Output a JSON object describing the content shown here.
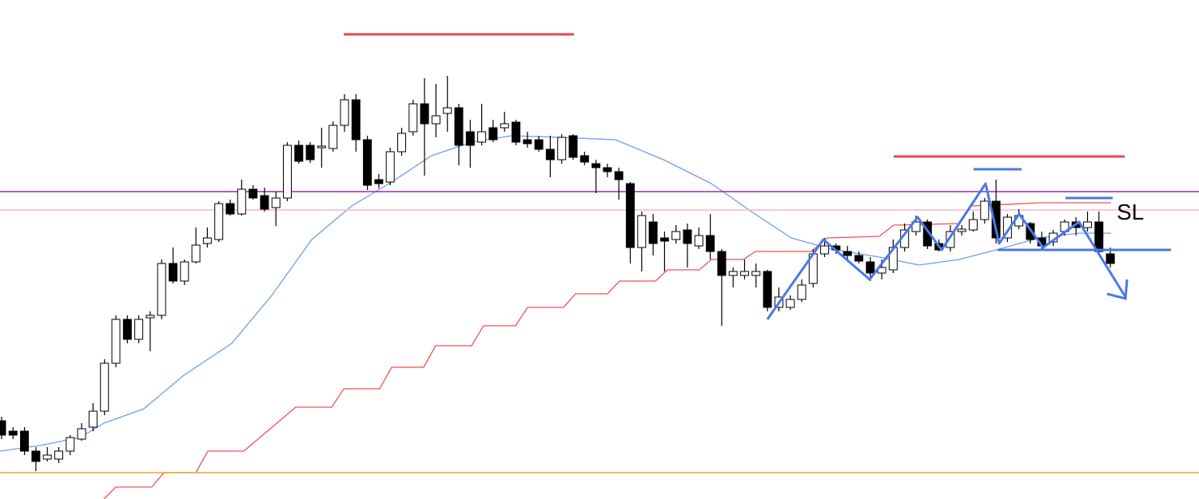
{
  "chart_data": {
    "type": "candlestick",
    "ylim": [
      0,
      625
    ],
    "up_color": "#ffffff",
    "down_color": "#000000",
    "open": [
      98,
      85,
      85,
      60,
      50,
      50,
      60,
      75,
      90,
      110,
      170,
      225,
      200,
      227,
      230,
      295,
      273,
      297,
      320,
      325,
      370,
      357,
      388,
      380,
      365,
      377,
      443,
      443,
      440,
      439,
      468,
      500,
      450,
      400,
      397,
      435,
      460,
      495,
      470,
      483,
      490,
      460,
      447,
      465,
      465,
      472,
      450,
      450,
      438,
      425,
      455,
      430,
      420,
      415,
      410,
      395,
      315,
      347,
      327,
      325,
      337,
      317,
      330,
      310,
      280,
      280,
      280,
      285,
      240,
      240,
      250,
      270,
      307,
      317,
      310,
      305,
      297,
      283,
      287,
      315,
      335,
      347,
      320,
      315,
      335,
      337,
      350,
      373,
      327,
      342,
      345,
      327,
      322,
      335,
      347,
      340,
      347,
      307
    ],
    "high": [
      103,
      90,
      90,
      65,
      65,
      65,
      80,
      95,
      120,
      175,
      230,
      230,
      230,
      235,
      300,
      315,
      300,
      340,
      340,
      373,
      375,
      400,
      393,
      390,
      385,
      447,
      449,
      447,
      465,
      473,
      507,
      507,
      455,
      407,
      440,
      465,
      500,
      527,
      520,
      530,
      495,
      475,
      495,
      475,
      485,
      475,
      460,
      455,
      455,
      457,
      457,
      435,
      425,
      420,
      415,
      397,
      360,
      357,
      335,
      343,
      345,
      340,
      357,
      313,
      290,
      300,
      295,
      287,
      265,
      255,
      275,
      313,
      327,
      320,
      317,
      310,
      303,
      300,
      325,
      345,
      355,
      350,
      325,
      343,
      343,
      360,
      377,
      400,
      357,
      363,
      347,
      335,
      337,
      350,
      353,
      360,
      360,
      315
    ],
    "low": [
      75,
      75,
      55,
      35,
      47,
      45,
      55,
      73,
      85,
      105,
      165,
      195,
      195,
      185,
      225,
      270,
      268,
      295,
      315,
      322,
      355,
      355,
      375,
      360,
      342,
      373,
      420,
      421,
      415,
      435,
      460,
      435,
      387,
      389,
      393,
      430,
      455,
      405,
      453,
      460,
      418,
      415,
      443,
      447,
      460,
      443,
      440,
      435,
      403,
      420,
      425,
      418,
      383,
      403,
      375,
      295,
      285,
      305,
      285,
      320,
      290,
      313,
      300,
      217,
      265,
      275,
      265,
      235,
      235,
      237,
      247,
      265,
      303,
      307,
      300,
      295,
      273,
      275,
      283,
      310,
      330,
      313,
      310,
      310,
      330,
      335,
      345,
      320,
      322,
      338,
      320,
      313,
      317,
      330,
      330,
      335,
      305,
      290
    ],
    "close": [
      80,
      80,
      60,
      47,
      55,
      60,
      77,
      88,
      110,
      170,
      225,
      200,
      225,
      230,
      295,
      273,
      297,
      318,
      327,
      370,
      357,
      388,
      377,
      363,
      377,
      443,
      423,
      425,
      442,
      468,
      500,
      450,
      393,
      395,
      435,
      458,
      495,
      470,
      480,
      490,
      443,
      443,
      460,
      450,
      470,
      447,
      445,
      438,
      425,
      453,
      428,
      422,
      415,
      410,
      400,
      315,
      355,
      320,
      323,
      335,
      320,
      330,
      310,
      280,
      285,
      285,
      285,
      240,
      253,
      250,
      268,
      307,
      317,
      312,
      305,
      298,
      283,
      290,
      315,
      337,
      347,
      317,
      312,
      335,
      338,
      350,
      373,
      327,
      353,
      355,
      325,
      317,
      333,
      347,
      340,
      347,
      310,
      295
    ],
    "levels": [
      {
        "value": 385,
        "color": "#9c27b0"
      },
      {
        "value": 362,
        "color": "#f7b6cf"
      },
      {
        "value": 33,
        "color": "#f5a623"
      }
    ],
    "annotation": "SL"
  }
}
